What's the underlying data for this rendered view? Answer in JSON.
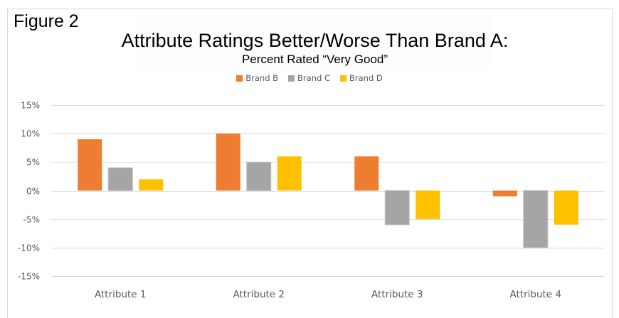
{
  "figure_label": "Figure 2",
  "chart_data": {
    "type": "bar",
    "title": "Attribute Ratings Better/Worse Than Brand A:",
    "subtitle": "Percent Rated “Very Good”",
    "xlabel": "",
    "ylabel": "",
    "categories": [
      "Attribute 1",
      "Attribute 2",
      "Attribute 3",
      "Attribute 4"
    ],
    "series": [
      {
        "name": "Brand B",
        "color": "#ed7d31",
        "values": [
          9,
          10,
          6,
          -1
        ]
      },
      {
        "name": "Brand C",
        "color": "#a5a5a5",
        "values": [
          4,
          5,
          -6,
          -10
        ]
      },
      {
        "name": "Brand D",
        "color": "#ffc000",
        "values": [
          2,
          6,
          -5,
          -6
        ]
      }
    ],
    "ylim": [
      -15,
      15
    ],
    "yticks": [
      15,
      10,
      5,
      0,
      -5,
      -10,
      -15
    ],
    "ytick_labels": [
      "15%",
      "10%",
      "5%",
      "0%",
      "-5%",
      "-10%",
      "-15%"
    ],
    "grid": true,
    "legend_position": "top-center",
    "gridline_color": "#d9d9d9"
  }
}
